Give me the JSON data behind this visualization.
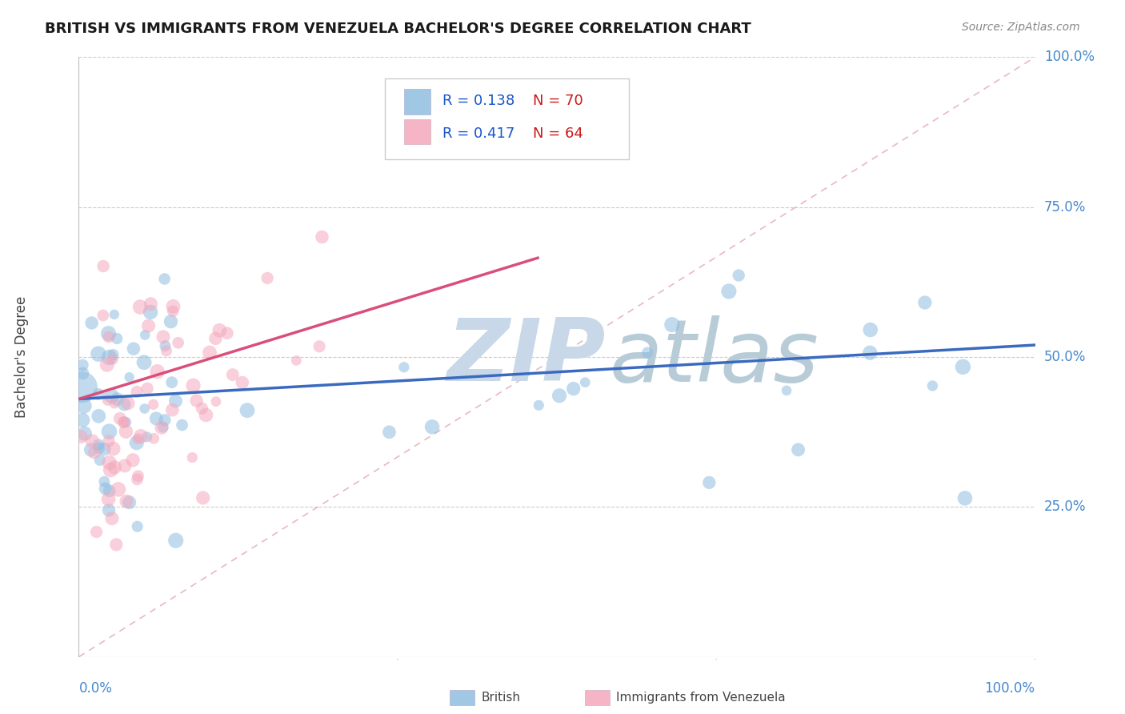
{
  "title": "BRITISH VS IMMIGRANTS FROM VENEZUELA BACHELOR'S DEGREE CORRELATION CHART",
  "source": "Source: ZipAtlas.com",
  "ylabel": "Bachelor's Degree",
  "r_british": 0.138,
  "n_british": 70,
  "r_venezuela": 0.417,
  "n_venezuela": 64,
  "british_color": "#90bde0",
  "venezuela_color": "#f4a8bc",
  "british_line_color": "#3a6abf",
  "venezuela_line_color": "#d94f7a",
  "diagonal_color": "#e8b0ba",
  "legend_r_color": "#1a56cc",
  "legend_n_color": "#cc1a1a",
  "ytick_labels": [
    "25.0%",
    "50.0%",
    "75.0%",
    "100.0%"
  ],
  "ytick_vals": [
    0.25,
    0.5,
    0.75,
    1.0
  ],
  "watermark_zip_color": "#c8d8e8",
  "watermark_atlas_color": "#b8ccd8"
}
